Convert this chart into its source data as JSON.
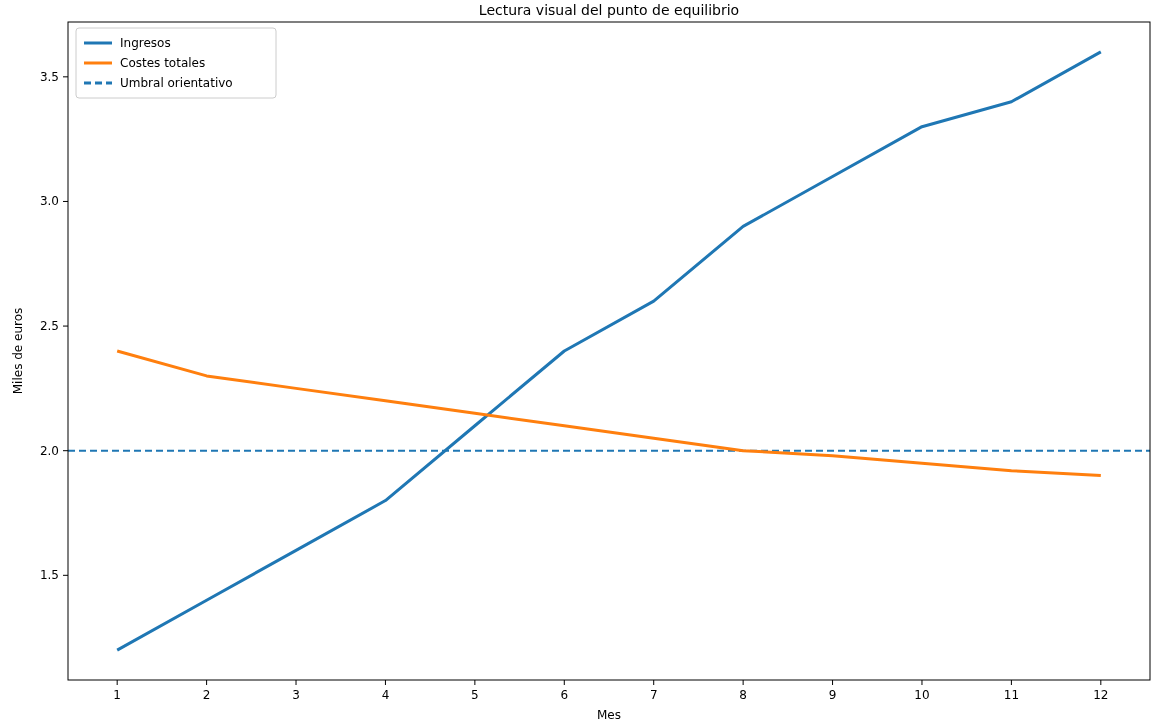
{
  "chart_data": {
    "type": "line",
    "title": "Lectura visual del punto de equilibrio",
    "xlabel": "Mes",
    "ylabel": "Miles de euros",
    "x": [
      1,
      2,
      3,
      4,
      5,
      6,
      7,
      8,
      9,
      10,
      11,
      12
    ],
    "series": [
      {
        "name": "Ingresos",
        "color": "#1f77b4",
        "values": [
          1.2,
          1.4,
          1.6,
          1.8,
          2.1,
          2.4,
          2.6,
          2.9,
          3.1,
          3.3,
          3.4,
          3.6
        ]
      },
      {
        "name": "Costes totales",
        "color": "#ff7f0e",
        "values": [
          2.4,
          2.3,
          2.25,
          2.2,
          2.15,
          2.1,
          2.05,
          2.0,
          1.98,
          1.95,
          1.92,
          1.9
        ]
      }
    ],
    "ref_lines": [
      {
        "axis": "y",
        "value": 2.0,
        "label": "Umbral orientativo",
        "color": "#1f77b4",
        "line_style": "dashed"
      }
    ],
    "xlim": [
      0.45,
      12.55
    ],
    "xticks": [
      1,
      2,
      3,
      4,
      5,
      6,
      7,
      8,
      9,
      10,
      11,
      12
    ],
    "ylim": [
      1.08,
      3.72
    ],
    "yticks": [
      {
        "value": 1.5,
        "label": "1.5"
      },
      {
        "value": 2.0,
        "label": "2.0"
      },
      {
        "value": 2.5,
        "label": "2.5"
      },
      {
        "value": 3.0,
        "label": "3.0"
      },
      {
        "value": 3.5,
        "label": "3.5"
      }
    ],
    "grid": false,
    "legend": "top left",
    "line_style": "solid",
    "marker": "none"
  }
}
